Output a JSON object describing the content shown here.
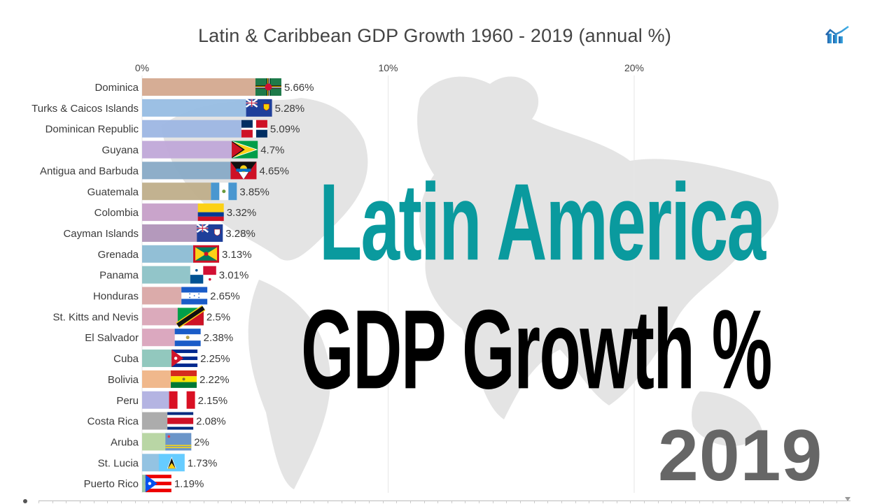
{
  "chart_data": {
    "type": "bar",
    "orientation": "horizontal",
    "title": "Latin & Caribbean GDP Growth 1960 - 2019 (annual %)",
    "xlabel": "",
    "ylabel": "",
    "xlim": [
      0,
      25
    ],
    "x_ticks": [
      0,
      10,
      20
    ],
    "x_tick_labels": [
      "0%",
      "10%",
      "20%"
    ],
    "x_tick_position": "top",
    "grid": true,
    "legend": "none",
    "categories": [
      "Dominica",
      "Turks & Caicos Islands",
      "Dominican Republic",
      "Guyana",
      "Antigua and Barbuda",
      "Guatemala",
      "Colombia",
      "Cayman Islands",
      "Grenada",
      "Panama",
      "Honduras",
      "St. Kitts and Nevis",
      "El Salvador",
      "Cuba",
      "Bolivia",
      "Peru",
      "Costa Rica",
      "Aruba",
      "St. Lucia",
      "Puerto Rico"
    ],
    "values": [
      5.66,
      5.28,
      5.09,
      4.7,
      4.65,
      3.85,
      3.32,
      3.28,
      3.13,
      3.01,
      2.65,
      2.5,
      2.38,
      2.25,
      2.22,
      2.15,
      2.08,
      2.0,
      1.73,
      1.19
    ],
    "value_labels": [
      "5.66%",
      "5.28%",
      "5.09%",
      "4.7%",
      "4.65%",
      "3.85%",
      "3.32%",
      "3.28%",
      "3.13%",
      "3.01%",
      "2.65%",
      "2.5%",
      "2.38%",
      "2.25%",
      "2.22%",
      "2.15%",
      "2.08%",
      "2%",
      "1.73%",
      "1.19%"
    ],
    "bar_colors": [
      "#d4a98f",
      "#97bde3",
      "#9db6e3",
      "#c0a8d8",
      "#88aac6",
      "#bfae8a",
      "#c69fc8",
      "#b093b8",
      "#8cbcd4",
      "#8cc2c6",
      "#d9a7a5",
      "#d9a5b7",
      "#d9a3bc",
      "#8cc5bb",
      "#efb486",
      "#b0b0e0",
      "#a8a8a8",
      "#b5d4a0",
      "#8ec0e0",
      "#93c4a2"
    ],
    "flags": [
      "dominica",
      "turks-caicos",
      "dominican-republic",
      "guyana",
      "antigua-barbuda",
      "guatemala",
      "colombia",
      "cayman-islands",
      "grenada",
      "panama",
      "honduras",
      "st-kitts-nevis",
      "el-salvador",
      "cuba",
      "bolivia",
      "peru",
      "costa-rica",
      "aruba",
      "st-lucia",
      "puerto-rico"
    ],
    "year": "2019"
  },
  "overlay": {
    "line1": "Latin America",
    "line2": "GDP Growth %",
    "year": "2019",
    "line1_color": "#0a9a9e",
    "line2_color": "#000000",
    "year_color": "#666666"
  },
  "logo": {
    "icon": "bar-chart-trend-icon",
    "color": "#2b78c2"
  },
  "timeline": {
    "handle_icon": "triangle-down-icon"
  }
}
